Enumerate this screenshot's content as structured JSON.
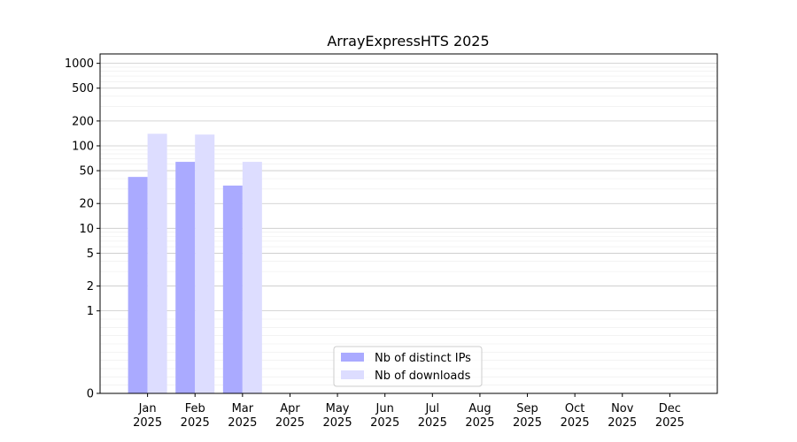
{
  "chart_data": {
    "type": "bar",
    "title": "ArrayExpressHTS 2025",
    "xlabel": "",
    "ylabel": "",
    "y_scale": "symlog",
    "ylim": [
      0,
      1300
    ],
    "y_ticks": [
      0,
      1,
      2,
      5,
      10,
      20,
      50,
      100,
      200,
      500,
      1000
    ],
    "y_tick_labels": [
      "0",
      "1",
      "2",
      "5",
      "10",
      "20",
      "50",
      "100",
      "200",
      "500",
      "1000"
    ],
    "grid": "horizontal",
    "legend_position": "bottom-center",
    "categories": [
      {
        "month": "Jan",
        "year": "2025"
      },
      {
        "month": "Feb",
        "year": "2025"
      },
      {
        "month": "Mar",
        "year": "2025"
      },
      {
        "month": "Apr",
        "year": "2025"
      },
      {
        "month": "May",
        "year": "2025"
      },
      {
        "month": "Jun",
        "year": "2025"
      },
      {
        "month": "Jul",
        "year": "2025"
      },
      {
        "month": "Aug",
        "year": "2025"
      },
      {
        "month": "Sep",
        "year": "2025"
      },
      {
        "month": "Oct",
        "year": "2025"
      },
      {
        "month": "Nov",
        "year": "2025"
      },
      {
        "month": "Dec",
        "year": "2025"
      }
    ],
    "series": [
      {
        "name": "Nb of distinct IPs",
        "color": "#aaaaff",
        "values": [
          42,
          64,
          33,
          0,
          0,
          0,
          0,
          0,
          0,
          0,
          0,
          0
        ]
      },
      {
        "name": "Nb of downloads",
        "color": "#ddddff",
        "values": [
          140,
          137,
          64,
          0,
          0,
          0,
          0,
          0,
          0,
          0,
          0,
          0
        ]
      }
    ]
  }
}
